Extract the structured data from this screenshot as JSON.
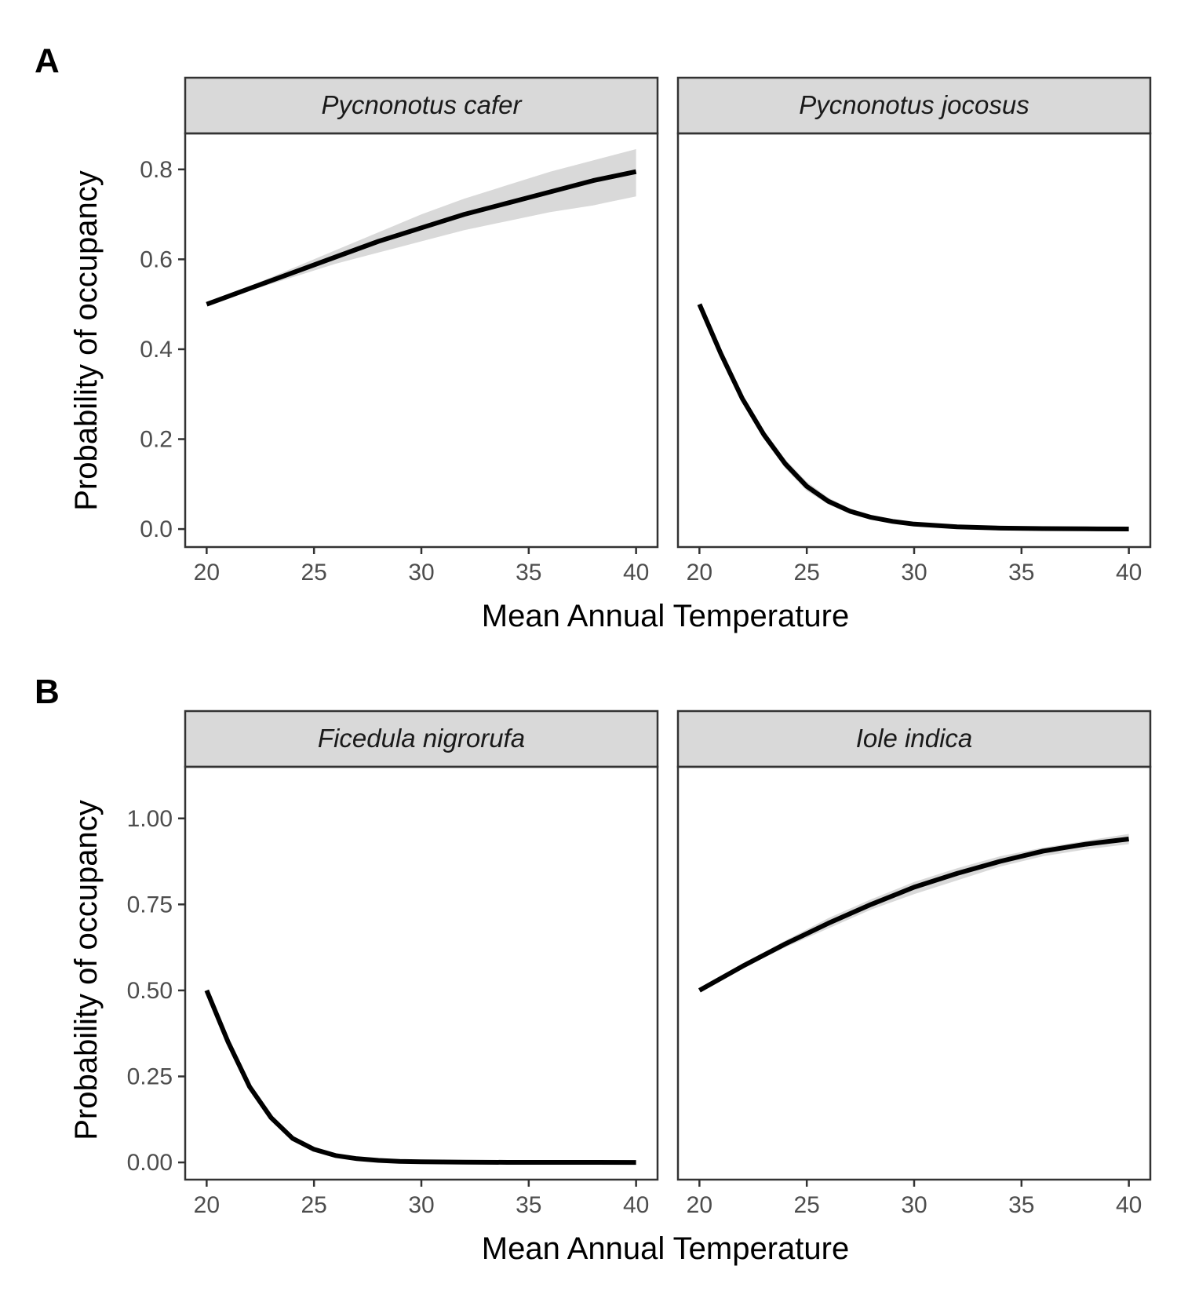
{
  "figure": {
    "panels": [
      {
        "letter": "A",
        "xlabel": "Mean Annual Temperature",
        "ylabel": "Probability of occupancy"
      },
      {
        "letter": "B",
        "xlabel": "Mean Annual Temperature",
        "ylabel": "Probability of occupancy"
      }
    ]
  },
  "chart_data": [
    {
      "type": "line",
      "panel": "A",
      "xlabel": "Mean Annual Temperature",
      "ylabel": "Probability of occupancy",
      "xlim": [
        19,
        41
      ],
      "ylim": [
        -0.04,
        0.88
      ],
      "x_ticks": [
        "20",
        "25",
        "30",
        "35",
        "40"
      ],
      "y_ticks": [
        "0.0",
        "0.2",
        "0.4",
        "0.6",
        "0.8"
      ],
      "y_tick_values": [
        0.0,
        0.2,
        0.4,
        0.6,
        0.8
      ],
      "grid": false,
      "facets": [
        {
          "name": "Pycnonotus cafer",
          "x": [
            20,
            22,
            24,
            26,
            28,
            30,
            32,
            34,
            36,
            38,
            40
          ],
          "y": [
            0.5,
            0.535,
            0.57,
            0.605,
            0.64,
            0.67,
            0.7,
            0.725,
            0.75,
            0.775,
            0.795
          ],
          "lower": [
            0.5,
            0.53,
            0.56,
            0.59,
            0.615,
            0.64,
            0.665,
            0.685,
            0.705,
            0.72,
            0.74
          ],
          "upper": [
            0.5,
            0.54,
            0.58,
            0.62,
            0.66,
            0.7,
            0.735,
            0.765,
            0.795,
            0.82,
            0.845
          ]
        },
        {
          "name": "Pycnonotus jocosus",
          "x": [
            20,
            21,
            22,
            23,
            24,
            25,
            26,
            27,
            28,
            29,
            30,
            32,
            34,
            36,
            38,
            40
          ],
          "y": [
            0.5,
            0.39,
            0.29,
            0.21,
            0.145,
            0.095,
            0.062,
            0.04,
            0.026,
            0.017,
            0.011,
            0.005,
            0.002,
            0.001,
            0.0005,
            0.0002
          ],
          "lower": [
            0.5,
            0.38,
            0.28,
            0.2,
            0.135,
            0.085,
            0.055,
            0.034,
            0.021,
            0.013,
            0.008,
            0.003,
            0.001,
            0.0004,
            0.0002,
            0.0001
          ],
          "upper": [
            0.5,
            0.4,
            0.3,
            0.22,
            0.155,
            0.105,
            0.07,
            0.046,
            0.031,
            0.021,
            0.014,
            0.007,
            0.003,
            0.0015,
            0.0008,
            0.0004
          ]
        }
      ]
    },
    {
      "type": "line",
      "panel": "B",
      "xlabel": "Mean Annual Temperature",
      "ylabel": "Probability of occupancy",
      "xlim": [
        19,
        41
      ],
      "ylim": [
        -0.05,
        1.15
      ],
      "x_ticks": [
        "20",
        "25",
        "30",
        "35",
        "40"
      ],
      "y_ticks": [
        "0.00",
        "0.25",
        "0.50",
        "0.75",
        "1.00"
      ],
      "y_tick_values": [
        0.0,
        0.25,
        0.5,
        0.75,
        1.0
      ],
      "grid": false,
      "facets": [
        {
          "name": "Ficedula nigrorufa",
          "x": [
            20,
            21,
            22,
            23,
            24,
            25,
            26,
            27,
            28,
            29,
            30,
            32,
            34,
            36,
            38,
            40
          ],
          "y": [
            0.5,
            0.35,
            0.22,
            0.13,
            0.07,
            0.038,
            0.02,
            0.011,
            0.006,
            0.003,
            0.002,
            0.0008,
            0.0003,
            0.0001,
            0.0001,
            0.0
          ],
          "lower": [
            0.5,
            0.34,
            0.21,
            0.12,
            0.063,
            0.033,
            0.017,
            0.009,
            0.005,
            0.0025,
            0.0015,
            0.0005,
            0.0002,
            0.0001,
            0.0,
            0.0
          ],
          "upper": [
            0.5,
            0.36,
            0.23,
            0.14,
            0.078,
            0.044,
            0.024,
            0.013,
            0.007,
            0.004,
            0.0025,
            0.001,
            0.0004,
            0.0002,
            0.0001,
            0.0001
          ]
        },
        {
          "name": "Iole indica",
          "x": [
            20,
            22,
            24,
            26,
            28,
            30,
            32,
            34,
            36,
            38,
            40
          ],
          "y": [
            0.5,
            0.57,
            0.635,
            0.695,
            0.75,
            0.8,
            0.84,
            0.875,
            0.905,
            0.925,
            0.94
          ],
          "lower": [
            0.5,
            0.565,
            0.625,
            0.68,
            0.735,
            0.78,
            0.82,
            0.86,
            0.89,
            0.91,
            0.925
          ],
          "upper": [
            0.5,
            0.575,
            0.645,
            0.71,
            0.765,
            0.815,
            0.855,
            0.89,
            0.915,
            0.935,
            0.955
          ]
        }
      ]
    }
  ]
}
